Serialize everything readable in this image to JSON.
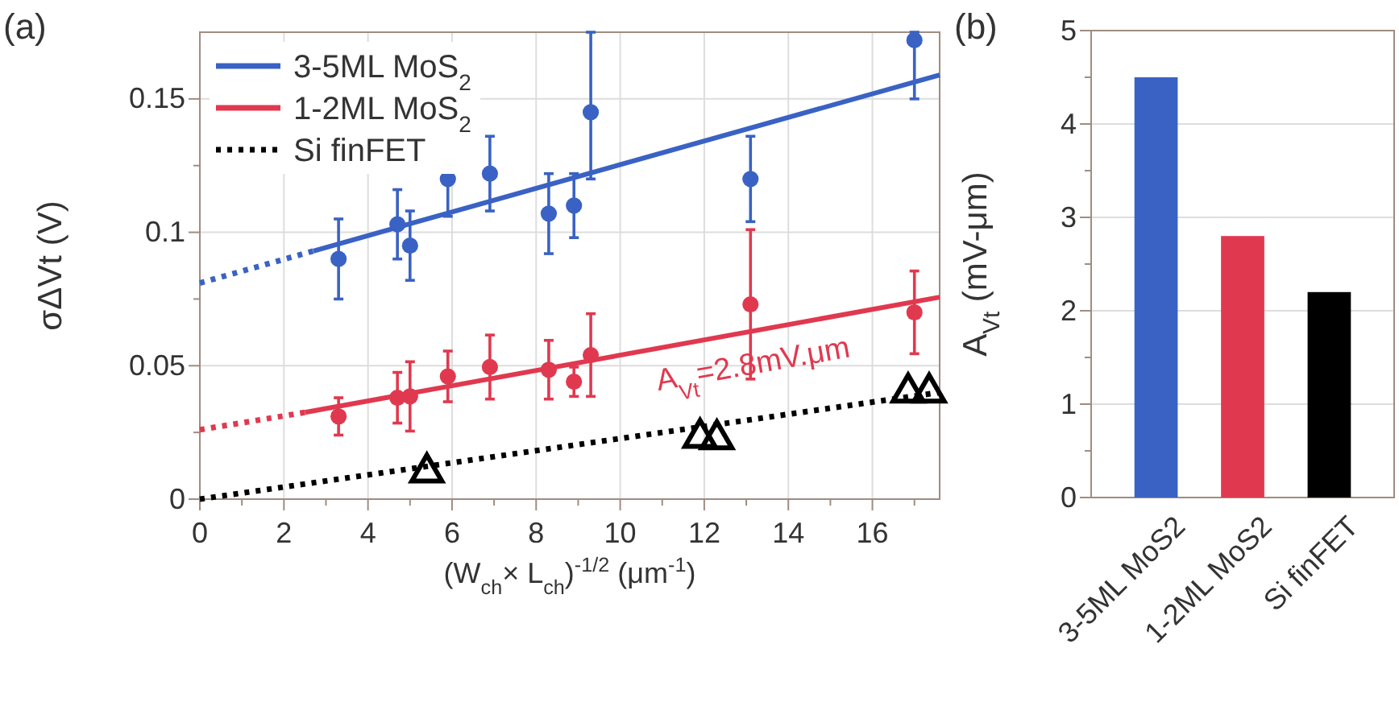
{
  "chart_data": [
    {
      "type": "scatter",
      "title": "(a)",
      "xlabel": "(W$_{ch}$× L$_{ch}$)$^{-1/2}$ (μm$^{-1}$)",
      "ylabel": "σΔVt (V)",
      "xlim": [
        0,
        17.6
      ],
      "ylim": [
        0,
        0.175
      ],
      "xticks": [
        0,
        {
          "value": 1,
          "label": null
        },
        2,
        {
          "value": 3,
          "label": null
        },
        4,
        {
          "value": 5,
          "label": null
        },
        6,
        {
          "value": 7,
          "label": null
        },
        8,
        {
          "value": 9,
          "label": null
        },
        10,
        {
          "value": 11,
          "label": null
        },
        12,
        {
          "value": 13,
          "label": null
        },
        14,
        {
          "value": 15,
          "label": null
        },
        16,
        {
          "value": 17,
          "label": null
        }
      ],
      "yticks": [
        0,
        {
          "value": 0.025,
          "label": null
        },
        0.05,
        {
          "value": 0.075,
          "label": null
        },
        0.1,
        {
          "value": 0.125,
          "label": null
        },
        0.15
      ],
      "grid": true,
      "legend": "top left",
      "series": [
        {
          "type": "line",
          "name": "3-5ML MoS$_{2}$",
          "color": "#3a62c4",
          "line_style": "solid",
          "x": [
            2.7,
            17.6
          ],
          "values": [
            0.093,
            0.159
          ]
        },
        {
          "type": "line",
          "color": "#3a62c4",
          "line_style": "dotted",
          "x": [
            0,
            2.7
          ],
          "values": [
            0.081,
            0.093
          ]
        },
        {
          "type": "line",
          "name": "1-2ML MoS$_{2}$",
          "color": "#e0394f",
          "line_style": "solid",
          "x": [
            2.5,
            17.6
          ],
          "values": [
            0.0325,
            0.0757
          ]
        },
        {
          "type": "line",
          "color": "#e0394f",
          "line_style": "dotted",
          "x": [
            0,
            2.5
          ],
          "values": [
            0.026,
            0.0325
          ]
        },
        {
          "type": "line",
          "name": "Si finFET",
          "color": "#000000",
          "line_style": "dotted",
          "x": [
            0,
            17.6
          ],
          "values": [
            0,
            0.04
          ]
        },
        {
          "type": "scatter",
          "color": "#3a62c4",
          "marker": "circle",
          "x": [
            3.3,
            4.7,
            5.0,
            5.9,
            6.9,
            8.3,
            8.9,
            9.3,
            13.1,
            17.0
          ],
          "values": [
            0.09,
            0.103,
            0.095,
            0.12,
            0.122,
            0.107,
            0.11,
            0.145,
            0.12,
            0.172
          ],
          "errors": [
            0.015,
            0.013,
            0.013,
            0.014,
            0.014,
            0.015,
            0.012,
            [
              0.12,
              0.175
            ],
            0.016,
            [
              0.15,
              0.175
            ]
          ]
        },
        {
          "type": "scatter",
          "color": "#e0394f",
          "marker": "circle",
          "x": [
            3.3,
            4.7,
            5.0,
            5.9,
            6.9,
            8.3,
            8.9,
            9.3,
            13.1,
            17.0
          ],
          "values": [
            0.031,
            0.038,
            0.0385,
            0.046,
            0.0495,
            0.0485,
            0.044,
            0.054,
            0.073,
            0.07
          ],
          "errors": [
            0.007,
            0.0095,
            0.013,
            0.0095,
            0.012,
            0.011,
            0.0055,
            0.0155,
            0.028,
            0.0155
          ]
        },
        {
          "type": "scatter",
          "color": "#000000",
          "marker": "triangle",
          "x": [
            5.4,
            11.9,
            12.3,
            16.85,
            17.35
          ],
          "values": [
            0.01,
            0.023,
            0.0225,
            0.04,
            0.04
          ]
        }
      ],
      "annotations": [
        {
          "text": "A$_{Vt}$=2.8mV.μm",
          "x": 13.2,
          "y": 0.047
        }
      ]
    },
    {
      "type": "bar",
      "title": "(b)",
      "ylabel": "A$_{Vt}$ (mV-μm)",
      "categories": [
        "3-5ML MoS2",
        "1-2ML MoS2",
        "Si finFET"
      ],
      "values": [
        4.5,
        2.8,
        2.2
      ],
      "colors": [
        "#3a62c4",
        "#e0394f",
        "#000000"
      ],
      "ylim": [
        0,
        5
      ],
      "yticks": [
        0,
        {
          "value": 0.5,
          "label": null
        },
        1,
        {
          "value": 1.5,
          "label": null
        },
        2,
        {
          "value": 2.5,
          "label": null
        },
        3,
        {
          "value": 3.5,
          "label": null
        },
        4,
        {
          "value": 4.5,
          "label": null
        },
        5
      ],
      "grid": "y"
    }
  ]
}
